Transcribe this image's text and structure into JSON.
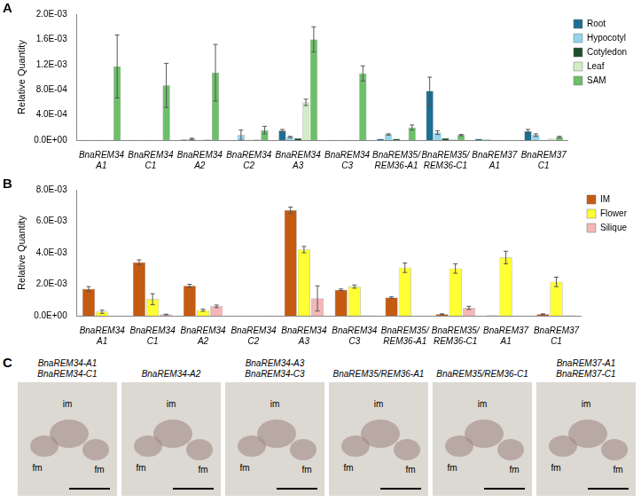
{
  "chart_data": [
    {
      "panel_label": "A",
      "type": "bar",
      "y_label": "Relative Quantity",
      "grid": false,
      "legend": "right",
      "categories": [
        "BnaREM34 A1",
        "BnaREM34 C1",
        "BnaREM34 A2",
        "BnaREM34 C2",
        "BnaREM34 A3",
        "BnaREM34 C3",
        "BnaREM35/REM36-A1",
        "BnaREM35/REM36-C1",
        "BnaREM37 A1",
        "BnaREM37 C1"
      ],
      "ylim": [
        0,
        0.002
      ],
      "yticks": [
        {
          "value": 0,
          "label": "0.0E+00"
        },
        {
          "value": 0.0004,
          "label": "4.0E-04"
        },
        {
          "value": 0.0008,
          "label": "8.0E-04"
        },
        {
          "value": 0.0012,
          "label": "1.2E-03"
        },
        {
          "value": 0.0016,
          "label": "1.6E-03"
        },
        {
          "value": 0.002,
          "label": "2.0E-03"
        }
      ],
      "series": [
        {
          "name": "Root",
          "color": "#1b6f93",
          "values": [
            5e-06,
            5e-06,
            1e-05,
            5e-06,
            0.00015,
            5e-06,
            2e-05,
            0.00078,
            2e-05,
            0.00014
          ],
          "errors": [
            null,
            null,
            null,
            null,
            2e-05,
            null,
            null,
            0.00022,
            null,
            3e-05
          ]
        },
        {
          "name": "Hypocotyl",
          "color": "#92d5ec",
          "values": [
            5e-06,
            5e-06,
            2e-05,
            8e-05,
            5e-05,
            5e-06,
            9e-05,
            0.00012,
            1e-05,
            8e-05
          ],
          "errors": [
            null,
            null,
            1e-05,
            8e-05,
            1e-05,
            null,
            1e-05,
            3e-05,
            null,
            2e-05
          ]
        },
        {
          "name": "Cotyledon",
          "color": "#1e4d2b",
          "values": [
            3e-06,
            3e-06,
            5e-06,
            5e-06,
            3e-05,
            3e-06,
            2e-05,
            3e-05,
            3e-06,
            5e-06
          ],
          "errors": [
            null,
            null,
            null,
            null,
            null,
            null,
            null,
            null,
            null,
            null
          ]
        },
        {
          "name": "Leaf",
          "color": "#d3ecc8",
          "values": [
            5e-06,
            5e-06,
            1e-05,
            1e-05,
            0.0006,
            5e-06,
            5e-06,
            1e-05,
            3e-06,
            2e-05
          ],
          "errors": [
            null,
            null,
            null,
            null,
            5e-05,
            null,
            null,
            null,
            null,
            null
          ]
        },
        {
          "name": "SAM",
          "color": "#6cc06a",
          "values": [
            0.00117,
            0.00087,
            0.00107,
            0.00016,
            0.0016,
            0.00106,
            0.0002,
            8e-05,
            5e-06,
            5e-05
          ],
          "errors": [
            0.0005,
            0.00035,
            0.00045,
            6e-05,
            0.0002,
            0.00012,
            4e-05,
            1e-05,
            null,
            1e-05
          ]
        }
      ]
    },
    {
      "panel_label": "B",
      "type": "bar",
      "y_label": "Relative Quantity",
      "grid": false,
      "legend": "right",
      "categories": [
        "BnaREM34 A1",
        "BnaREM34 C1",
        "BnaREM34 A2",
        "BnaREM34 C2",
        "BnaREM34 A3",
        "BnaREM34 C3",
        "BnaREM35/REM36-A1",
        "BnaREM35/REM36-C1",
        "BnaREM37 A1",
        "BnaREM37 C1"
      ],
      "ylim": [
        0,
        0.008
      ],
      "yticks": [
        {
          "value": 0,
          "label": "0.0E+00"
        },
        {
          "value": 0.002,
          "label": "2.0E-03"
        },
        {
          "value": 0.004,
          "label": "4.0E-03"
        },
        {
          "value": 0.006,
          "label": "6.0E-03"
        },
        {
          "value": 0.008,
          "label": "8.0E-03"
        }
      ],
      "series": [
        {
          "name": "IM",
          "color": "#c55a11",
          "values": [
            0.0017,
            0.0034,
            0.0019,
            2e-05,
            0.0067,
            0.00165,
            0.00115,
            0.0001,
            3e-05,
            0.0001
          ],
          "errors": [
            0.00015,
            0.00015,
            0.0001,
            null,
            0.0002,
            5e-05,
            5e-05,
            2e-05,
            null,
            2e-05
          ]
        },
        {
          "name": "Flower",
          "color": "#ffff33",
          "values": [
            0.00025,
            0.00105,
            0.00035,
            2e-05,
            0.0042,
            0.00185,
            0.00305,
            0.003,
            0.0037,
            0.00215
          ],
          "errors": [
            0.0001,
            0.00035,
            7e-05,
            null,
            0.0002,
            0.0001,
            0.0003,
            0.0003,
            0.0004,
            0.0003
          ]
        },
        {
          "name": "Silique",
          "color": "#f4b6b6",
          "values": [
            2e-05,
            8e-05,
            0.0006,
            1e-05,
            0.0011,
            3e-05,
            2e-05,
            0.0005,
            2e-05,
            3e-05
          ],
          "errors": [
            null,
            2e-05,
            8e-05,
            null,
            0.0008,
            null,
            null,
            0.0001,
            null,
            null
          ]
        }
      ]
    }
  ],
  "panel_c": {
    "panel_label": "C",
    "images": [
      {
        "title": [
          "BnaREM34-A1",
          "BnaREM34-C1"
        ],
        "labels": [
          "fm",
          "im",
          "fm"
        ]
      },
      {
        "title": [
          "BnaREM34-A2"
        ],
        "labels": [
          "fm",
          "im",
          "fm"
        ]
      },
      {
        "title": [
          "BnaREM34-A3",
          "BnaREM34-C3"
        ],
        "labels": [
          "fm",
          "im",
          "fm"
        ]
      },
      {
        "title": [
          "BnaREM35/REM36-A1"
        ],
        "labels": [
          "fm",
          "im",
          "fm"
        ]
      },
      {
        "title": [
          "BnaREM35/REM36-C1"
        ],
        "labels": [
          "fm",
          "im",
          "fm"
        ]
      },
      {
        "title": [
          "BnaREM37-A1",
          "BnaREM37-C1"
        ],
        "labels": [
          "fm",
          "im",
          "fm"
        ]
      }
    ]
  }
}
